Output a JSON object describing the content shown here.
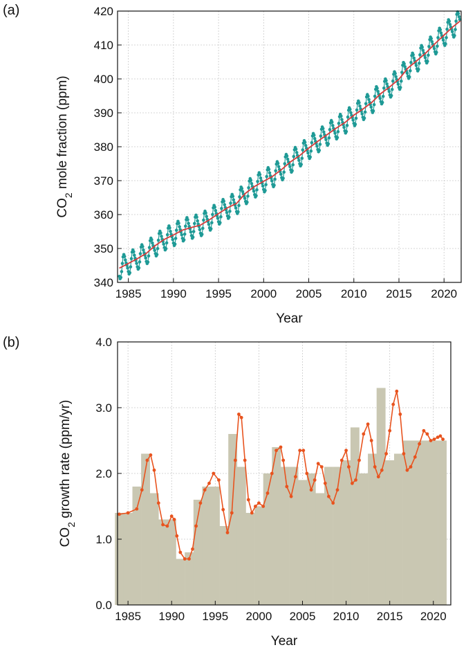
{
  "panels": {
    "a": {
      "label": "(a)"
    },
    "b": {
      "label": "(b)"
    }
  },
  "chart_data": [
    {
      "type": "line",
      "xlabel": "Year",
      "ylabel": "CO2 mole fraction (ppm)",
      "ylabel_main": "CO",
      "ylabel_sub": "2",
      "ylabel_rest": " mole fraction (ppm)",
      "xlim": [
        1983.8,
        2021.9
      ],
      "ylim": [
        340,
        420
      ],
      "xticks": [
        1985,
        1990,
        1995,
        2000,
        2005,
        2010,
        2015,
        2020
      ],
      "yticks": [
        340,
        350,
        360,
        370,
        380,
        390,
        400,
        410,
        420
      ],
      "grid": true,
      "series": [
        {
          "kind": "trend",
          "color": "#d63a3a",
          "x": [
            1984,
            1985,
            1986,
            1987,
            1988,
            1989,
            1990,
            1991,
            1992,
            1993,
            1994,
            1995,
            1996,
            1997,
            1998,
            1999,
            2000,
            2001,
            2002,
            2003,
            2004,
            2005,
            2006,
            2007,
            2008,
            2009,
            2010,
            2011,
            2012,
            2013,
            2014,
            2015,
            2016,
            2017,
            2018,
            2019,
            2020,
            2021,
            2021.8
          ],
          "y": [
            344.2,
            345.6,
            347.0,
            348.6,
            350.9,
            352.7,
            354.0,
            355.4,
            356.2,
            356.9,
            358.5,
            360.3,
            362.0,
            363.3,
            366.3,
            368.3,
            369.8,
            371.3,
            373.3,
            375.6,
            377.4,
            379.6,
            381.6,
            383.5,
            385.4,
            387.1,
            389.3,
            391.1,
            393.1,
            395.7,
            397.7,
            399.9,
            403.2,
            405.4,
            407.7,
            410.4,
            412.9,
            415.4,
            417.1
          ]
        },
        {
          "kind": "monthly",
          "color": "#1f9a96",
          "seasonal_amplitude": 3.0
        }
      ]
    },
    {
      "type": "bar",
      "xlabel": "Year",
      "ylabel": "CO2 growth rate (ppm/yr)",
      "ylabel_main": "CO",
      "ylabel_sub": "2",
      "ylabel_rest": " growth rate (ppm/yr)",
      "xlim": [
        1983.8,
        2022
      ],
      "ylim": [
        0,
        4
      ],
      "xticks": [
        1985,
        1990,
        1995,
        2000,
        2005,
        2010,
        2015,
        2020
      ],
      "yticks": [
        0.0,
        1.0,
        2.0,
        3.0,
        4.0
      ],
      "ytick_labels": [
        "0.0",
        "1.0",
        "2.0",
        "3.0",
        "4.0"
      ],
      "grid": true,
      "bars": {
        "color": "#c9c7b2",
        "years": [
          1984,
          1985,
          1986,
          1987,
          1988,
          1989,
          1990,
          1991,
          1992,
          1993,
          1994,
          1995,
          1996,
          1997,
          1998,
          1999,
          2000,
          2001,
          2002,
          2003,
          2004,
          2005,
          2006,
          2007,
          2008,
          2009,
          2010,
          2011,
          2012,
          2013,
          2014,
          2015,
          2016,
          2017,
          2018,
          2019,
          2020,
          2021
        ],
        "values": [
          1.4,
          1.4,
          1.8,
          2.3,
          1.7,
          1.3,
          1.3,
          0.7,
          0.8,
          1.6,
          1.8,
          1.8,
          1.2,
          2.6,
          2.1,
          1.4,
          1.5,
          2.0,
          2.4,
          2.1,
          2.1,
          1.9,
          2.0,
          1.7,
          2.1,
          2.1,
          2.2,
          2.7,
          2.0,
          2.3,
          3.3,
          2.2,
          2.3,
          2.5,
          2.5,
          2.5,
          2.5,
          2.5
        ]
      },
      "smoothed": {
        "color": "#e8531e",
        "x": [
          1984.0,
          1985.0,
          1986.0,
          1986.6,
          1987.2,
          1987.6,
          1988.0,
          1988.5,
          1989.0,
          1989.5,
          1990.0,
          1990.3,
          1990.6,
          1991.0,
          1991.5,
          1992.0,
          1992.4,
          1992.8,
          1993.3,
          1993.8,
          1994.3,
          1994.8,
          1995.4,
          1995.9,
          1996.4,
          1996.9,
          1997.3,
          1997.7,
          1998.0,
          1998.4,
          1998.8,
          1999.2,
          1999.6,
          2000.0,
          2000.5,
          2001.0,
          2001.5,
          2002.0,
          2002.5,
          2002.8,
          2003.2,
          2003.7,
          2004.2,
          2004.7,
          2005.1,
          2005.5,
          2006.0,
          2006.4,
          2006.8,
          2007.2,
          2007.6,
          2008.0,
          2008.5,
          2009.0,
          2009.5,
          2010.0,
          2010.3,
          2010.7,
          2011.1,
          2011.5,
          2012.0,
          2012.5,
          2012.9,
          2013.3,
          2013.7,
          2014.1,
          2014.6,
          2015.0,
          2015.4,
          2015.8,
          2016.2,
          2016.6,
          2017.0,
          2017.4,
          2017.9,
          2018.4,
          2018.9,
          2019.3,
          2019.7,
          2020.1,
          2020.5,
          2020.8,
          2021.1
        ],
        "y": [
          1.38,
          1.4,
          1.46,
          1.75,
          2.2,
          2.28,
          2.05,
          1.55,
          1.22,
          1.2,
          1.35,
          1.3,
          1.05,
          0.8,
          0.7,
          0.7,
          0.85,
          1.2,
          1.55,
          1.75,
          1.85,
          2.0,
          1.9,
          1.45,
          1.1,
          1.4,
          2.2,
          2.9,
          2.85,
          2.2,
          1.6,
          1.4,
          1.5,
          1.55,
          1.5,
          1.7,
          2.0,
          2.35,
          2.4,
          2.2,
          1.8,
          1.65,
          1.95,
          2.35,
          2.35,
          2.0,
          1.75,
          1.9,
          2.15,
          2.1,
          1.85,
          1.65,
          1.55,
          1.75,
          2.2,
          2.35,
          2.1,
          1.85,
          1.9,
          2.2,
          2.6,
          2.75,
          2.5,
          2.1,
          1.95,
          2.05,
          2.3,
          2.65,
          3.05,
          3.25,
          2.9,
          2.3,
          2.05,
          2.1,
          2.25,
          2.45,
          2.65,
          2.6,
          2.5,
          2.52,
          2.55,
          2.57,
          2.52
        ]
      }
    }
  ]
}
